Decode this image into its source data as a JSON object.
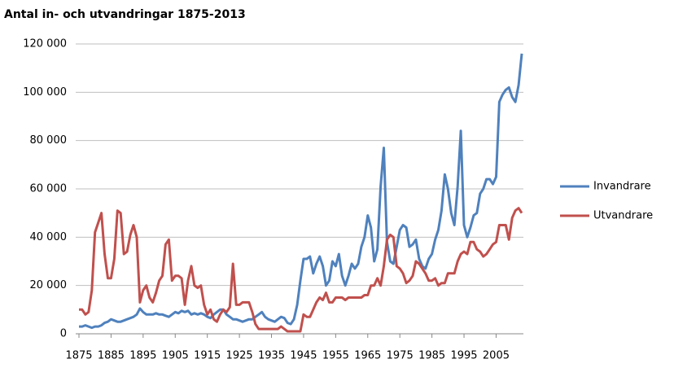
{
  "chart_data": {
    "type": "line",
    "title": "Antal in- och utvandringar 1875-2013",
    "x": [
      1875,
      1876,
      1877,
      1878,
      1879,
      1880,
      1881,
      1882,
      1883,
      1884,
      1885,
      1886,
      1887,
      1888,
      1889,
      1890,
      1891,
      1892,
      1893,
      1894,
      1895,
      1896,
      1897,
      1898,
      1899,
      1900,
      1901,
      1902,
      1903,
      1904,
      1905,
      1906,
      1907,
      1908,
      1909,
      1910,
      1911,
      1912,
      1913,
      1914,
      1915,
      1916,
      1917,
      1918,
      1919,
      1920,
      1921,
      1922,
      1923,
      1924,
      1925,
      1926,
      1927,
      1928,
      1929,
      1930,
      1931,
      1932,
      1933,
      1934,
      1935,
      1936,
      1937,
      1938,
      1939,
      1940,
      1941,
      1942,
      1943,
      1944,
      1945,
      1946,
      1947,
      1948,
      1949,
      1950,
      1951,
      1952,
      1953,
      1954,
      1955,
      1956,
      1957,
      1958,
      1959,
      1960,
      1961,
      1962,
      1963,
      1964,
      1965,
      1966,
      1967,
      1968,
      1969,
      1970,
      1971,
      1972,
      1973,
      1974,
      1975,
      1976,
      1977,
      1978,
      1979,
      1980,
      1981,
      1982,
      1983,
      1984,
      1985,
      1986,
      1987,
      1988,
      1989,
      1990,
      1991,
      1992,
      1993,
      1994,
      1995,
      1996,
      1997,
      1998,
      1999,
      2000,
      2001,
      2002,
      2003,
      2004,
      2005,
      2006,
      2007,
      2008,
      2009,
      2010,
      2011,
      2012,
      2013
    ],
    "series": [
      {
        "name": "Invandrare",
        "color": "#4f81bd",
        "values": [
          3000,
          3000,
          3500,
          3000,
          2500,
          3000,
          3000,
          3500,
          4500,
          5000,
          6000,
          5500,
          5000,
          5000,
          5500,
          6000,
          6500,
          7000,
          8000,
          10500,
          9000,
          8000,
          8000,
          8000,
          8500,
          8000,
          8000,
          7500,
          7000,
          8000,
          9000,
          8500,
          9500,
          9000,
          9500,
          8000,
          8500,
          8000,
          8500,
          8000,
          7000,
          6500,
          8000,
          9000,
          10000,
          10000,
          8000,
          7000,
          6000,
          6000,
          5500,
          5000,
          5500,
          6000,
          6000,
          7000,
          8000,
          9000,
          7000,
          6000,
          5500,
          5000,
          6000,
          7000,
          6500,
          4500,
          4000,
          6000,
          12000,
          22000,
          31000,
          31000,
          32000,
          25000,
          29000,
          32000,
          28000,
          20000,
          22000,
          30000,
          28000,
          33000,
          24000,
          20000,
          24000,
          29000,
          27000,
          29000,
          36000,
          40000,
          49000,
          44000,
          30000,
          35000,
          61000,
          77000,
          38000,
          30000,
          29000,
          36000,
          43000,
          45000,
          44000,
          36000,
          37000,
          39000,
          31000,
          28000,
          27000,
          31000,
          33000,
          39000,
          43000,
          51000,
          66000,
          60000,
          50000,
          45000,
          61000,
          84000,
          45000,
          40000,
          44000,
          49000,
          50000,
          58000,
          60000,
          64000,
          64000,
          62000,
          65000,
          96000,
          99000,
          101000,
          102000,
          98000,
          96000,
          103000,
          116000
        ]
      },
      {
        "name": "Utvandrare",
        "color": "#c0504d",
        "values": [
          10000,
          10000,
          8000,
          9000,
          18000,
          42000,
          46000,
          50000,
          33000,
          23000,
          23000,
          31000,
          51000,
          50000,
          33000,
          34000,
          41000,
          45000,
          40000,
          13000,
          18000,
          20000,
          15000,
          13000,
          17000,
          22000,
          24000,
          37000,
          39000,
          22000,
          24000,
          24000,
          23000,
          12000,
          22000,
          28000,
          20000,
          19000,
          20000,
          12000,
          8000,
          10000,
          6000,
          5000,
          8000,
          10000,
          9000,
          11000,
          29000,
          12000,
          12000,
          13000,
          13000,
          13000,
          9000,
          4000,
          2000,
          2000,
          2000,
          2000,
          2000,
          2000,
          2000,
          3000,
          2000,
          1000,
          1000,
          1000,
          1000,
          1000,
          8000,
          7000,
          7000,
          10000,
          13000,
          15000,
          14000,
          17000,
          13000,
          13000,
          15000,
          15000,
          15000,
          14000,
          15000,
          15000,
          15000,
          15000,
          15000,
          16000,
          16000,
          20000,
          20000,
          23000,
          20000,
          28000,
          39000,
          41000,
          40000,
          28000,
          27000,
          25000,
          21000,
          22000,
          24000,
          30000,
          29000,
          27000,
          25000,
          22000,
          22000,
          23000,
          20000,
          21000,
          21000,
          25000,
          25000,
          25000,
          30000,
          33000,
          34000,
          33000,
          38000,
          38000,
          35000,
          34000,
          32000,
          33000,
          35000,
          37000,
          38000,
          45000,
          45000,
          45000,
          39000,
          48000,
          51000,
          52000,
          50000
        ]
      }
    ],
    "xlim": [
      1875,
      2013
    ],
    "xticks": [
      1875,
      1885,
      1895,
      1905,
      1915,
      1925,
      1935,
      1945,
      1955,
      1965,
      1975,
      1985,
      1995,
      2005
    ],
    "ylim": [
      0,
      120000
    ],
    "yticks": [
      0,
      {
        "value": 20000,
        "label": "20 000"
      },
      {
        "value": 40000,
        "label": "40 000"
      },
      {
        "value": 60000,
        "label": "60 000"
      },
      {
        "value": 80000,
        "label": "80 000"
      },
      {
        "value": 100000,
        "label": "100 000"
      },
      {
        "value": 120000,
        "label": "120 000"
      }
    ],
    "grid": true,
    "legend": "right"
  }
}
